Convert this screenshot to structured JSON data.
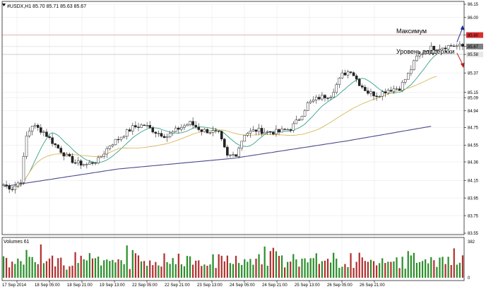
{
  "window": {
    "header_label": "#USDX,H1  85.70 85.71 85.63 85.67",
    "volume_label": "Volumes 61"
  },
  "chart_data": {
    "type": "candlestick",
    "symbol": "#USDX",
    "timeframe": "H1",
    "ohlc_header": [
      85.7,
      85.71,
      85.63,
      85.67
    ],
    "price_axis_ticks": [
      "86.15",
      "86.00",
      "85.80",
      "85.67",
      "85.58",
      "85.37",
      "85.15",
      "85.09",
      "84.94",
      "84.75",
      "84.55",
      "84.36",
      "84.15",
      "83.95",
      "83.75",
      "83.55"
    ],
    "price_range": [
      83.55,
      86.15
    ],
    "x_tick_labels": [
      "17 Sep 2014",
      "18 Sep 05:00",
      "18 Sep 21:00",
      "19 Sep 13:00",
      "22 Sep 05:00",
      "22 Sep 21:00",
      "23 Sep 13:00",
      "24 Sep 05:00",
      "24 Sep 21:00",
      "25 Sep 13:00",
      "26 Sep 05:00",
      "26 Sep 21:00"
    ],
    "highlighted_levels": {
      "maximum": 85.8,
      "support": 85.58,
      "current": 85.67
    },
    "annotations": {
      "maximum_label": "Максимум",
      "support_label": "Уровень поддержки"
    },
    "price_anchors": [
      [
        0,
        84.1
      ],
      [
        3,
        84.06
      ],
      [
        6,
        84.15
      ],
      [
        8,
        84.65
      ],
      [
        10,
        84.78
      ],
      [
        14,
        84.7
      ],
      [
        18,
        84.55
      ],
      [
        22,
        84.42
      ],
      [
        25,
        84.35
      ],
      [
        29,
        84.33
      ],
      [
        33,
        84.38
      ],
      [
        37,
        84.55
      ],
      [
        41,
        84.65
      ],
      [
        45,
        84.75
      ],
      [
        49,
        84.78
      ],
      [
        53,
        84.7
      ],
      [
        57,
        84.65
      ],
      [
        61,
        84.74
      ],
      [
        65,
        84.8
      ],
      [
        69,
        84.72
      ],
      [
        73,
        84.7
      ],
      [
        75,
        84.68
      ],
      [
        78,
        84.42
      ],
      [
        81,
        84.45
      ],
      [
        84,
        84.68
      ],
      [
        88,
        84.72
      ],
      [
        92,
        84.7
      ],
      [
        96,
        84.7
      ],
      [
        100,
        84.74
      ],
      [
        103,
        84.85
      ],
      [
        106,
        85.02
      ],
      [
        110,
        85.09
      ],
      [
        114,
        85.12
      ],
      [
        118,
        85.35
      ],
      [
        121,
        85.4
      ],
      [
        124,
        85.25
      ],
      [
        127,
        85.15
      ],
      [
        130,
        85.12
      ],
      [
        134,
        85.18
      ],
      [
        138,
        85.2
      ],
      [
        141,
        85.35
      ],
      [
        144,
        85.55
      ],
      [
        148,
        85.65
      ],
      [
        152,
        85.66
      ],
      [
        156,
        85.68
      ],
      [
        160,
        85.67
      ]
    ],
    "moving_averages": [
      {
        "name": "fast",
        "color": "#3aa08c",
        "period": 10
      },
      {
        "name": "medium",
        "color": "#d8b65a",
        "period": 34
      },
      {
        "name": "slow",
        "color": "#4b4b8c",
        "anchors": [
          [
            0,
            84.08
          ],
          [
            40,
            84.28
          ],
          [
            80,
            84.4
          ],
          [
            120,
            84.6
          ],
          [
            150,
            84.77
          ]
        ]
      }
    ],
    "volume_axis_ticks": [
      "382",
      "0"
    ],
    "volume_max": 382,
    "volume_pattern": [
      0.55,
      0.35,
      0.45,
      0.28,
      0.6,
      0.42,
      0.33,
      0.5,
      0.68,
      0.4,
      0.3,
      0.52,
      0.45,
      0.72,
      0.38,
      0.47,
      0.58,
      0.35,
      0.62,
      0.4,
      0.3,
      0.55,
      0.48,
      0.65,
      0.37,
      0.52,
      0.44,
      0.78,
      0.42,
      0.5,
      0.36,
      0.61,
      0.47,
      0.39,
      0.7,
      0.53,
      0.45,
      0.6,
      0.33,
      0.57,
      0.49,
      0.66,
      0.41,
      0.85,
      0.46,
      0.54,
      0.38,
      0.63
    ],
    "colors": {
      "candle_up": "#2c8f2c",
      "candle_down": "#b23030",
      "volume_up": "#2c8f2c",
      "volume_down": "#b23030",
      "max_line": "#d9a0a0",
      "support_line": "#c0c0c0",
      "max_label_bg": "#d83030",
      "current_label_bg": "#808080",
      "arrow_up": "#1a2fa0",
      "arrow_down": "#c82020",
      "grid": "#e6e6e6"
    }
  }
}
